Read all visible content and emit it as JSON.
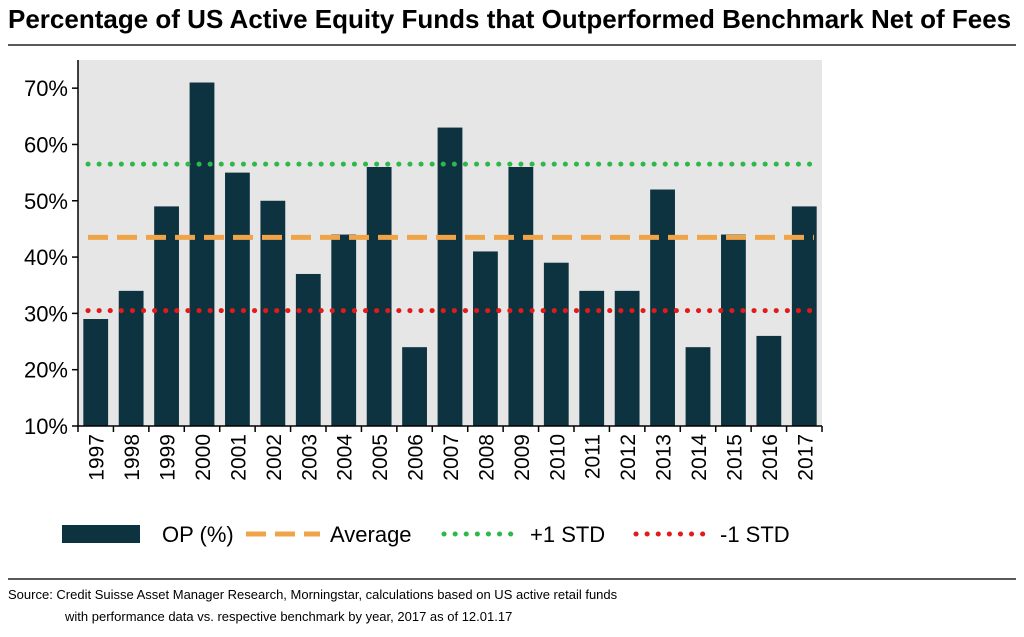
{
  "title": "Percentage of US Active Equity Funds that Outperformed Benchmark Net of Fees",
  "source_line1": "Source: Credit Suisse Asset Manager Research, Morningstar, calculations based on US active retail funds",
  "source_line2": "with performance data vs. respective benchmark by year, 2017 as of 12.01.17",
  "colors": {
    "bar": "#0d3340",
    "average": "#f0a44a",
    "plus_std": "#2eb84a",
    "minus_std": "#e21a1a",
    "plot_bg": "#e6e6e6"
  },
  "chart_data": {
    "type": "bar",
    "categories": [
      "1997",
      "1998",
      "1999",
      "2000",
      "2001",
      "2002",
      "2003",
      "2004",
      "2005",
      "2006",
      "2007",
      "2008",
      "2009",
      "2010",
      "2011",
      "2012",
      "2013",
      "2014",
      "2015",
      "2016",
      "2017"
    ],
    "series": [
      {
        "name": "OP (%)",
        "values": [
          29,
          34,
          49,
          71,
          55,
          50,
          37,
          44,
          56,
          24,
          63,
          41,
          56,
          39,
          34,
          34,
          52,
          24,
          44,
          26,
          49
        ]
      }
    ],
    "reference_lines": [
      {
        "name": "Average",
        "value": 43.5,
        "style": "dashed"
      },
      {
        "name": "+1 STD",
        "value": 56.5,
        "style": "dotted"
      },
      {
        "name": "-1 STD",
        "value": 30.5,
        "style": "dotted"
      }
    ],
    "ylim": [
      10,
      75
    ],
    "yticks": [
      10,
      20,
      30,
      40,
      50,
      60,
      70
    ],
    "ytick_labels": [
      "10%",
      "20%",
      "30%",
      "40%",
      "50%",
      "60%",
      "70%"
    ],
    "xlabel": "",
    "ylabel": "",
    "grid": false,
    "legend_position": "bottom",
    "legend": [
      "OP (%)",
      "Average",
      "+1 STD",
      "-1 STD"
    ]
  }
}
